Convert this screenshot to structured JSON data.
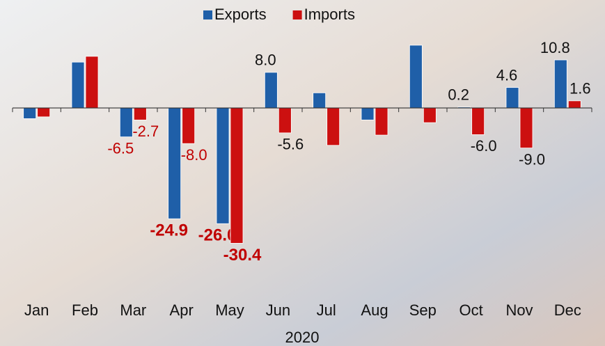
{
  "chart_data": {
    "type": "bar",
    "x_label": "2020",
    "categories": [
      "Jan",
      "Feb",
      "Mar",
      "Apr",
      "May",
      "Jun",
      "Jul",
      "Aug",
      "Sep",
      "Oct",
      "Nov",
      "Dec"
    ],
    "series": [
      {
        "name": "Exports",
        "color": "#1f5fa8",
        "values": [
          -2.4,
          10.3,
          -6.5,
          -24.9,
          -26.0,
          8.0,
          3.4,
          -2.7,
          14.1,
          0.2,
          4.6,
          10.8
        ],
        "value_labels": [
          null,
          null,
          "-6.5",
          "-24.9",
          "-26.0",
          "8.0",
          null,
          null,
          null,
          "0.2",
          "4.6",
          "10.8"
        ]
      },
      {
        "name": "Imports",
        "color": "#cc1010",
        "values": [
          -2.0,
          11.6,
          -2.7,
          -8.0,
          -30.4,
          -5.6,
          -8.4,
          -6.1,
          -3.3,
          -6.0,
          -9.0,
          1.6
        ],
        "value_labels": [
          null,
          null,
          "-2.7",
          "-8.0",
          "-30.4",
          "-5.6",
          null,
          null,
          null,
          "-6.0",
          "-9.0",
          "1.6"
        ]
      }
    ],
    "ylim": [
      -38,
      18
    ],
    "legend": "top"
  }
}
